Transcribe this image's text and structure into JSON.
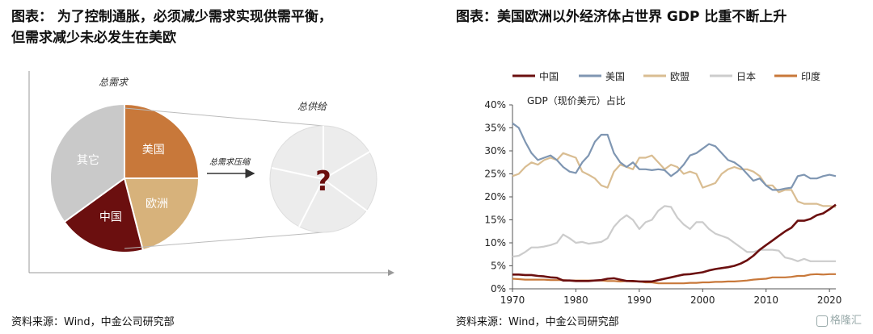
{
  "left": {
    "title_line1": "图表：  为了控制通胀，必须减少需求实现供需平衡，",
    "title_line2": "但需求减少未必发生在美欧",
    "source": "资料来源：Wind，中金公司研究部"
  },
  "right": {
    "title": "图表：美国欧洲以外经济体占世界 GDP 比重不断上升",
    "source": "资料来源：Wind，中金公司研究部"
  },
  "watermark": "格隆汇",
  "chart_data": [
    {
      "type": "pie",
      "title": "总需求",
      "categories": [
        "美国",
        "欧洲",
        "中国",
        "其它"
      ],
      "values": [
        25,
        21,
        19,
        35
      ],
      "colors": [
        "#c8783a",
        "#d7b27b",
        "#6b0f0f",
        "#c9c9c9"
      ],
      "annotations": {
        "arrow_label": "总需求压缩",
        "supply_label": "总供给",
        "supply_mark": "?"
      }
    },
    {
      "type": "line",
      "subtitle": "GDP（现价美元）占比",
      "x": [
        1970,
        1971,
        1972,
        1973,
        1974,
        1975,
        1976,
        1977,
        1978,
        1979,
        1980,
        1981,
        1982,
        1983,
        1984,
        1985,
        1986,
        1987,
        1988,
        1989,
        1990,
        1991,
        1992,
        1993,
        1994,
        1995,
        1996,
        1997,
        1998,
        1999,
        2000,
        2001,
        2002,
        2003,
        2004,
        2005,
        2006,
        2007,
        2008,
        2009,
        2010,
        2011,
        2012,
        2013,
        2014,
        2015,
        2016,
        2017,
        2018,
        2019,
        2020,
        2021
      ],
      "xticks": [
        1970,
        1980,
        1990,
        2000,
        2010,
        2020
      ],
      "yticks": [
        "0%",
        "5%",
        "10%",
        "15%",
        "20%",
        "25%",
        "30%",
        "35%",
        "40%"
      ],
      "ylim": [
        0,
        40
      ],
      "legend_position": "top",
      "series": [
        {
          "name": "中国",
          "color": "#6b0f0f",
          "values": [
            3.1,
            3.1,
            3.0,
            3.0,
            2.8,
            2.7,
            2.5,
            2.4,
            1.8,
            1.8,
            1.7,
            1.7,
            1.7,
            1.8,
            1.9,
            2.2,
            2.3,
            2.0,
            1.7,
            1.7,
            1.6,
            1.6,
            1.6,
            1.9,
            2.2,
            2.5,
            2.8,
            3.1,
            3.2,
            3.4,
            3.6,
            4.0,
            4.3,
            4.5,
            4.7,
            5.0,
            5.5,
            6.2,
            7.2,
            8.5,
            9.5,
            10.5,
            11.5,
            12.5,
            13.3,
            14.8,
            14.8,
            15.2,
            16.0,
            16.4,
            17.3,
            18.3
          ]
        },
        {
          "name": "美国",
          "color": "#7f96b2",
          "values": [
            36.0,
            35.0,
            32.0,
            29.5,
            28.0,
            28.5,
            29.0,
            28.0,
            26.5,
            25.5,
            25.2,
            27.5,
            29.0,
            32.0,
            33.5,
            33.5,
            29.5,
            27.5,
            26.5,
            27.5,
            26.0,
            26.0,
            25.8,
            26.0,
            25.8,
            24.5,
            25.5,
            27.0,
            29.0,
            29.5,
            30.5,
            31.5,
            31.0,
            29.5,
            28.0,
            27.5,
            26.5,
            25.0,
            23.5,
            24.0,
            22.5,
            21.5,
            21.5,
            21.8,
            22.0,
            24.5,
            24.8,
            24.0,
            24.0,
            24.5,
            24.8,
            24.5
          ]
        },
        {
          "name": "欧盟",
          "color": "#d9bd92",
          "values": [
            24.5,
            25.0,
            26.5,
            27.5,
            27.0,
            28.0,
            28.5,
            28.0,
            29.5,
            29.0,
            28.5,
            25.5,
            24.8,
            24.0,
            22.5,
            22.0,
            25.5,
            27.0,
            26.5,
            26.0,
            28.5,
            28.5,
            29.0,
            27.5,
            26.0,
            27.0,
            26.5,
            25.0,
            25.5,
            25.0,
            22.0,
            22.5,
            23.0,
            25.0,
            26.0,
            26.5,
            26.0,
            26.0,
            25.5,
            24.5,
            22.5,
            22.5,
            21.0,
            21.5,
            21.5,
            19.0,
            18.5,
            18.5,
            18.5,
            18.0,
            18.0,
            17.8
          ]
        },
        {
          "name": "日本",
          "color": "#cccccc",
          "values": [
            7.0,
            7.2,
            8.0,
            9.0,
            9.0,
            9.2,
            9.5,
            10.0,
            11.8,
            11.0,
            10.0,
            10.2,
            9.8,
            10.0,
            10.2,
            11.0,
            13.5,
            15.0,
            16.0,
            15.0,
            13.0,
            14.5,
            15.0,
            17.0,
            18.0,
            17.8,
            15.5,
            14.0,
            13.0,
            14.5,
            14.5,
            13.0,
            12.0,
            11.5,
            11.0,
            10.0,
            9.0,
            8.0,
            8.0,
            8.5,
            8.5,
            8.5,
            8.3,
            6.8,
            6.5,
            6.0,
            6.5,
            6.0,
            6.0,
            6.0,
            6.0,
            6.0
          ]
        },
        {
          "name": "印度",
          "color": "#c8783a",
          "values": [
            2.2,
            2.1,
            2.0,
            2.0,
            2.0,
            2.0,
            1.9,
            1.9,
            1.9,
            1.8,
            1.8,
            1.8,
            1.8,
            1.8,
            1.8,
            1.7,
            1.7,
            1.6,
            1.7,
            1.6,
            1.6,
            1.4,
            1.4,
            1.2,
            1.2,
            1.2,
            1.2,
            1.2,
            1.3,
            1.3,
            1.4,
            1.4,
            1.5,
            1.5,
            1.6,
            1.6,
            1.7,
            1.8,
            2.0,
            2.1,
            2.2,
            2.5,
            2.5,
            2.5,
            2.6,
            2.8,
            2.8,
            3.1,
            3.2,
            3.1,
            3.2,
            3.2
          ]
        }
      ]
    }
  ]
}
